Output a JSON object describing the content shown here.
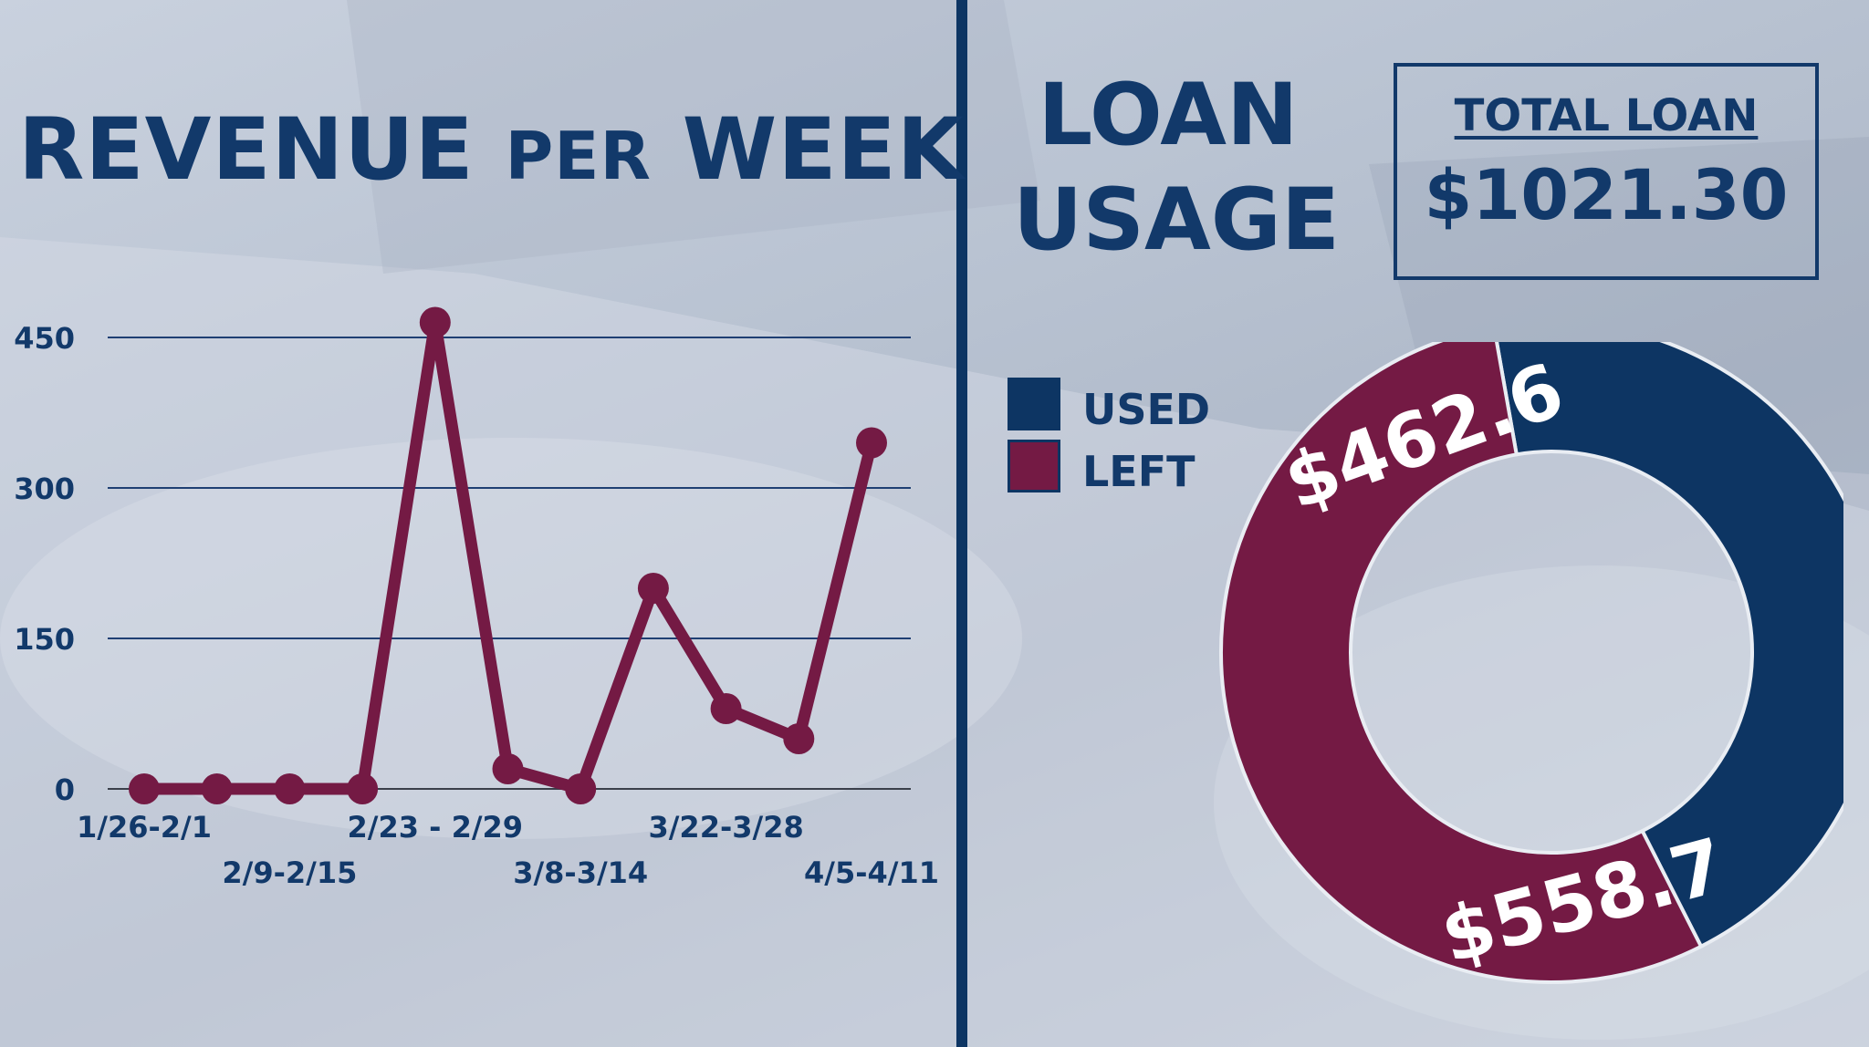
{
  "left": {
    "title_main": "REVENUE ",
    "title_small": "PER",
    "title_end": " WEEK"
  },
  "right": {
    "title_line1": "LOAN",
    "title_line2": "USAGE",
    "total_label": "TOTAL LOAN",
    "total_value": "$1021.30",
    "legend": [
      {
        "label": "USED",
        "color": "#0d3563"
      },
      {
        "label": "LEFT",
        "color": "#741a44"
      }
    ]
  },
  "colors": {
    "navy": "#0d3563",
    "maroon": "#741a44",
    "title": "#12396a"
  },
  "chart_data": [
    {
      "type": "line",
      "title": "REVENUE PER WEEK",
      "categories": [
        "1/26-2/1",
        "",
        "2/9-2/15",
        "",
        "2/23 - 2/29",
        "",
        "3/8-3/14",
        "",
        "3/22-3/28",
        "",
        "4/5-4/11"
      ],
      "series": [
        {
          "values": [
            0,
            0,
            0,
            0,
            465,
            20,
            0,
            200,
            80,
            50,
            345
          ]
        }
      ],
      "ylim": [
        0,
        450
      ],
      "yticks": [
        0,
        150,
        300,
        450
      ],
      "grid": true,
      "color": "#741a44"
    },
    {
      "type": "pie",
      "title": "LOAN USAGE",
      "labels": [
        "USED",
        "LEFT"
      ],
      "values": [
        462.6,
        558.7
      ],
      "value_labels": [
        "$462.6",
        "$558.7"
      ],
      "colors": [
        "#0d3563",
        "#741a44"
      ],
      "donut": true
    }
  ]
}
